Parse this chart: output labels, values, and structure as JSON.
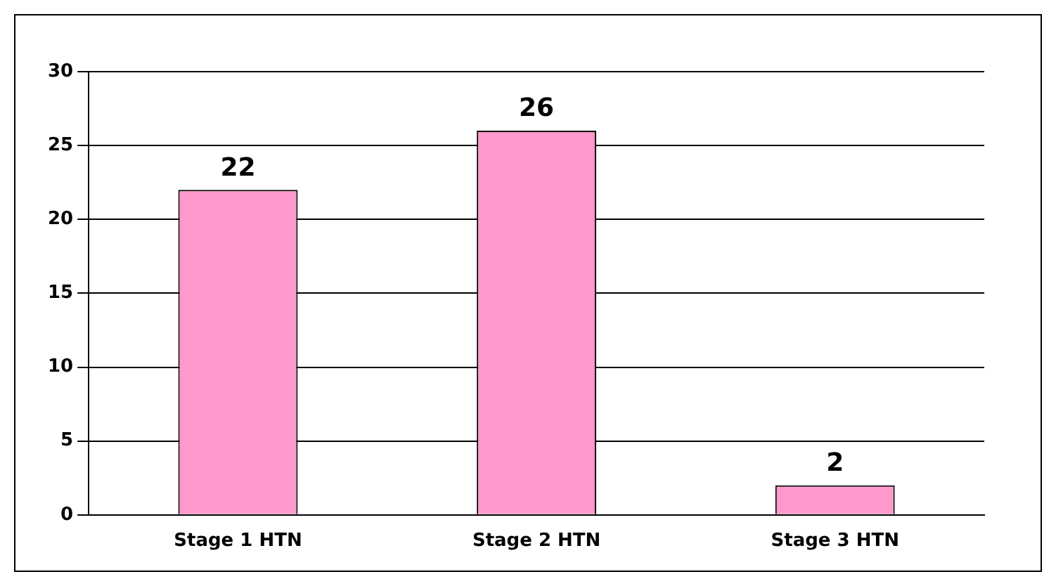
{
  "chart_data": {
    "type": "bar",
    "categories": [
      "Stage 1 HTN",
      "Stage 2 HTN",
      "Stage 3 HTN"
    ],
    "values": [
      22,
      26,
      2
    ],
    "color": "#ff99cc",
    "ylim": [
      0,
      30
    ],
    "yticks": [
      0,
      5,
      10,
      15,
      20,
      25,
      30
    ],
    "grid": "y",
    "data_labels": true
  }
}
